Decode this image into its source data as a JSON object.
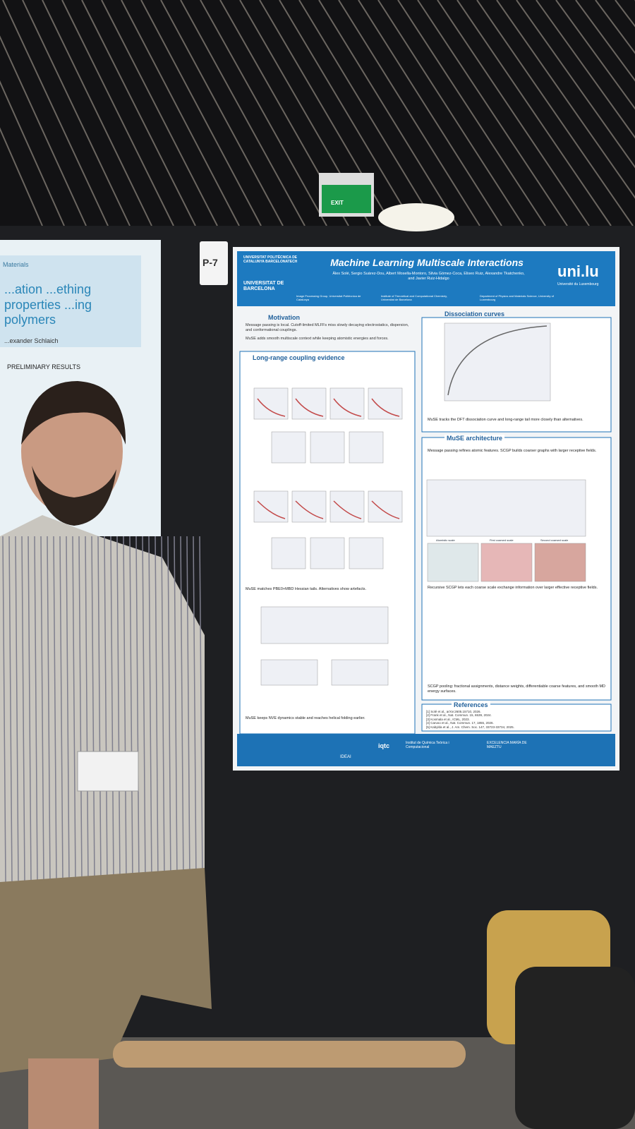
{
  "exit_sign": {
    "label": "EXIT"
  },
  "board_label": "P-7",
  "poster": {
    "title": "Machine Learning Multiscale Interactions",
    "authors": "Àlex Solé, Sergio Suárez-Dou, Albert Mosella-Montoro, Silvia Gómez-Coca, Eliseo Ruiz, Alexandre Tkatchenko, and Javier Ruiz-Hidalgo",
    "left_logo": "UNIVERSITAT POLITÈCNICA DE CATALUNYA BARCELONATECH",
    "left_logo_2": "UNIVERSITAT DE BARCELONA",
    "right_logo": "uni.lu",
    "right_logo_sub": "Université du Luxembourg",
    "affiliations": [
      "Image Processing Group, Universitat Politècnica de Catalunya",
      "Institute of Theoretical and Computational Chemistry, Universitat de Barcelona",
      "Department of Physics and Materials Science, University of Luxembourg"
    ],
    "motivation": {
      "heading": "Motivation",
      "bullets": [
        "Message passing is local. Cutoff-limited MLFFs miss slowly decaying electrostatics, dispersion, and conformational couplings.",
        "MuSE adds smooth multiscale context while keeping atomistic energies and forces."
      ]
    },
    "long_range": {
      "heading": "Long-range coupling evidence",
      "caption_1": "MuSE matches PBE0+MBD Hessian tails. Alternatives show artefacts.",
      "caption_2": "MuSE keeps NVE dynamics stable and reaches helical folding earlier."
    },
    "dissociation": {
      "heading": "Dissociation curves",
      "caption": "MuSE tracks the DFT dissociation curve and long-range tail more closely than alternatives."
    },
    "architecture": {
      "heading": "MuSE architecture",
      "intro": "Message passing refines atomic features. SCGP builds coarser graphs with larger receptive fields.",
      "scales": [
        "Atomistic scale",
        "First coarsed scale",
        "Second coarsed scale"
      ],
      "caption_1": "Recursive SCGP lets each coarse scale exchange information over larger effective receptive fields.",
      "caption_2": "SCGP pooling: fractional assignments, distance weights, differentiable coarse features, and smooth MD energy surfaces."
    },
    "references": {
      "heading": "References",
      "items": [
        "[1] Solé et al., arXiv:2605.15710, 2026.",
        "[2] Frank et al., Nat. Commun. 15, 6539, 2024.",
        "[3] Kosmala et al., ICML, 2023.",
        "[4] Caruso et al., Nat. Commun. 17, 1855, 2026.",
        "[5] Kabylda et al., J. Am. Chem. Soc. 147, 33723-33734, 2025."
      ]
    },
    "footer_logos": [
      "IDEAI",
      "iqtc",
      "Institut de Química Teòrica i Computacional",
      "EXCELENCIA MARÍA DE MAEZTU"
    ]
  },
  "left_poster": {
    "tag": "Materials",
    "title": "...ation ...ething properties ...ing polymers",
    "author": "...exander Schlaich",
    "section": "PRELIMINARY RESULTS"
  }
}
